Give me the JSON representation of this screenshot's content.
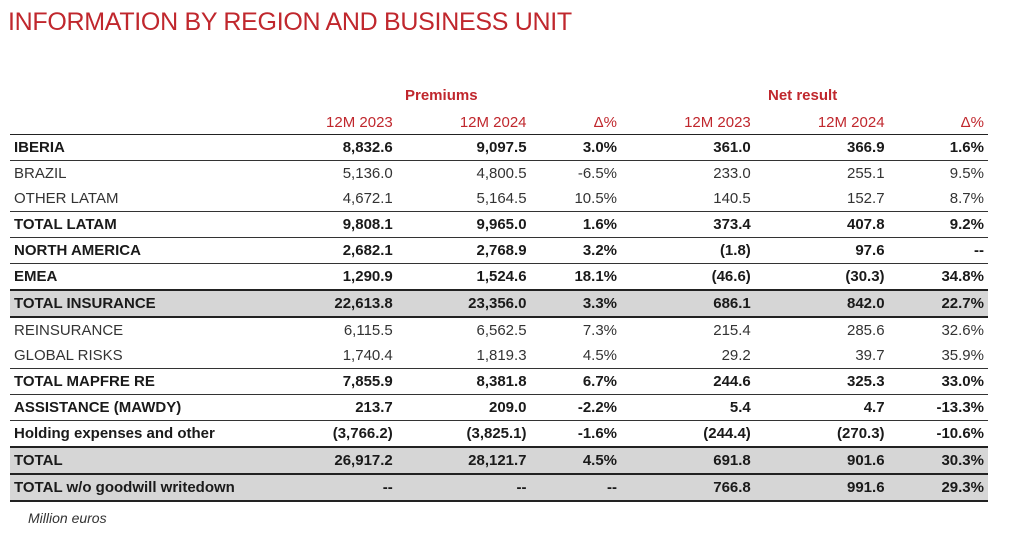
{
  "title": "INFORMATION BY REGION AND BUSINESS UNIT",
  "groups": {
    "premiums": "Premiums",
    "net_result": "Net result"
  },
  "columns": [
    "12M 2023",
    "12M 2024",
    "Δ%",
    "12M 2023",
    "12M 2024",
    "Δ%"
  ],
  "rows": [
    {
      "cells": [
        "IBERIA",
        "8,832.6",
        "9,097.5",
        "3.0%",
        "361.0",
        "366.9",
        "1.6%"
      ],
      "style": "bold"
    },
    {
      "cells": [
        "BRAZIL",
        "5,136.0",
        "4,800.5",
        "-6.5%",
        "233.0",
        "255.1",
        "9.5%"
      ],
      "style": "plain"
    },
    {
      "cells": [
        "OTHER LATAM",
        "4,672.1",
        "5,164.5",
        "10.5%",
        "140.5",
        "152.7",
        "8.7%"
      ],
      "style": "plain"
    },
    {
      "cells": [
        "TOTAL LATAM",
        "9,808.1",
        "9,965.0",
        "1.6%",
        "373.4",
        "407.8",
        "9.2%"
      ],
      "style": "bold"
    },
    {
      "cells": [
        "NORTH AMERICA",
        "2,682.1",
        "2,768.9",
        "3.2%",
        "(1.8)",
        "97.6",
        "--"
      ],
      "style": "bold"
    },
    {
      "cells": [
        "EMEA",
        "1,290.9",
        "1,524.6",
        "18.1%",
        "(46.6)",
        "(30.3)",
        "34.8%"
      ],
      "style": "bold"
    },
    {
      "cells": [
        "TOTAL INSURANCE",
        "22,613.8",
        "23,356.0",
        "3.3%",
        "686.1",
        "842.0",
        "22.7%"
      ],
      "style": "gray"
    },
    {
      "cells": [
        "REINSURANCE",
        "6,115.5",
        "6,562.5",
        "7.3%",
        "215.4",
        "285.6",
        "32.6%"
      ],
      "style": "plain"
    },
    {
      "cells": [
        "GLOBAL RISKS",
        "1,740.4",
        "1,819.3",
        "4.5%",
        "29.2",
        "39.7",
        "35.9%"
      ],
      "style": "plain"
    },
    {
      "cells": [
        "TOTAL MAPFRE RE",
        "7,855.9",
        "8,381.8",
        "6.7%",
        "244.6",
        "325.3",
        "33.0%"
      ],
      "style": "bold"
    },
    {
      "cells": [
        "ASSISTANCE (MAWDY)",
        "213.7",
        "209.0",
        "-2.2%",
        "5.4",
        "4.7",
        "-13.3%"
      ],
      "style": "bold"
    },
    {
      "cells": [
        "Holding expenses and other",
        "(3,766.2)",
        "(3,825.1)",
        "-1.6%",
        "(244.4)",
        "(270.3)",
        "-10.6%"
      ],
      "style": "bold"
    },
    {
      "cells": [
        "TOTAL",
        "26,917.2",
        "28,121.7",
        "4.5%",
        "691.8",
        "901.6",
        "30.3%"
      ],
      "style": "gray"
    },
    {
      "cells": [
        "TOTAL w/o goodwill writedown",
        "--",
        "--",
        "--",
        "766.8",
        "991.6",
        "29.3%"
      ],
      "style": "gray"
    }
  ],
  "footer": "Million euros",
  "colors": {
    "accent": "#c0272d",
    "highlight_row": "#d6d6d6"
  }
}
